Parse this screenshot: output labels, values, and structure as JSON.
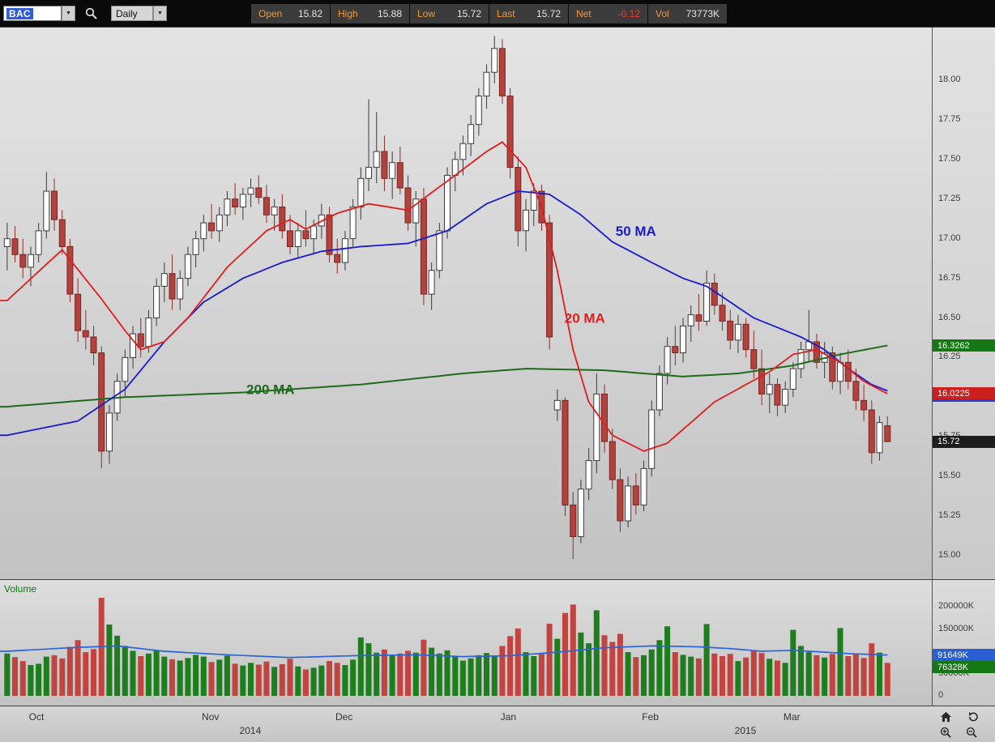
{
  "toolbar": {
    "symbol": "BAC",
    "timeframe": "Daily",
    "fields": [
      {
        "label": "Open",
        "value": "15.82"
      },
      {
        "label": "High",
        "value": "15.88"
      },
      {
        "label": "Low",
        "value": "15.72"
      },
      {
        "label": "Last",
        "value": "15.72"
      },
      {
        "label": "Net",
        "value": "-0.12",
        "negative": true
      },
      {
        "label": "Vol",
        "value": "73773K"
      }
    ]
  },
  "colors": {
    "up": "#fdfdfd",
    "up_border": "#3c3c3c",
    "down": "#b2423e",
    "down_border": "#7c2420",
    "ma20": "#e11d1d",
    "ma50": "#1a1ad0",
    "ma200": "#1e6b1e",
    "vol_up": "#1e7e1e",
    "vol_down": "#c04540",
    "vol_ma": "#2a64d9"
  },
  "chart_data": {
    "type": "candlestick+volume",
    "symbol": "BAC",
    "timeframe": "Daily",
    "ylim": [
      14.852,
      18.332
    ],
    "volume_pane_label": "Volume",
    "candles": [
      [
        16.95,
        17.1,
        16.8,
        17.0,
        95000
      ],
      [
        17.0,
        17.08,
        16.85,
        16.9,
        87000
      ],
      [
        16.9,
        17.0,
        16.75,
        16.82,
        78000
      ],
      [
        16.82,
        16.95,
        16.7,
        16.9,
        69000
      ],
      [
        16.9,
        17.1,
        16.85,
        17.05,
        72000
      ],
      [
        17.05,
        17.42,
        17.0,
        17.3,
        88000
      ],
      [
        17.3,
        17.38,
        17.05,
        17.12,
        91000
      ],
      [
        17.12,
        17.18,
        16.9,
        16.95,
        84000
      ],
      [
        16.95,
        17.0,
        16.6,
        16.65,
        110000
      ],
      [
        16.65,
        16.75,
        16.35,
        16.42,
        125000
      ],
      [
        16.42,
        16.55,
        16.3,
        16.38,
        98000
      ],
      [
        16.38,
        16.45,
        16.2,
        16.28,
        105000
      ],
      [
        16.28,
        16.32,
        15.55,
        15.66,
        220000
      ],
      [
        15.66,
        15.95,
        15.58,
        15.9,
        160000
      ],
      [
        15.9,
        16.15,
        15.85,
        16.1,
        135000
      ],
      [
        16.1,
        16.3,
        16.0,
        16.25,
        112000
      ],
      [
        16.25,
        16.45,
        16.18,
        16.4,
        101000
      ],
      [
        16.4,
        16.5,
        16.25,
        16.32,
        89000
      ],
      [
        16.32,
        16.55,
        16.28,
        16.5,
        95000
      ],
      [
        16.5,
        16.75,
        16.45,
        16.7,
        102000
      ],
      [
        16.7,
        16.85,
        16.6,
        16.78,
        88000
      ],
      [
        16.78,
        16.9,
        16.55,
        16.62,
        82000
      ],
      [
        16.62,
        16.8,
        16.55,
        16.75,
        79000
      ],
      [
        16.75,
        16.95,
        16.7,
        16.9,
        85000
      ],
      [
        16.9,
        17.05,
        16.82,
        17.0,
        92000
      ],
      [
        17.0,
        17.15,
        16.92,
        17.1,
        88000
      ],
      [
        17.1,
        17.22,
        17.0,
        17.05,
        76000
      ],
      [
        17.05,
        17.2,
        16.98,
        17.15,
        81000
      ],
      [
        17.15,
        17.3,
        17.08,
        17.25,
        90000
      ],
      [
        17.25,
        17.35,
        17.15,
        17.2,
        72000
      ],
      [
        17.2,
        17.32,
        17.12,
        17.28,
        68000
      ],
      [
        17.28,
        17.38,
        17.2,
        17.32,
        74000
      ],
      [
        17.32,
        17.4,
        17.22,
        17.26,
        70000
      ],
      [
        17.26,
        17.34,
        17.1,
        17.15,
        77000
      ],
      [
        17.15,
        17.25,
        17.05,
        17.2,
        65000
      ],
      [
        17.2,
        17.28,
        17.0,
        17.05,
        71000
      ],
      [
        17.05,
        17.15,
        16.9,
        16.95,
        83000
      ],
      [
        16.95,
        17.1,
        16.88,
        17.05,
        66000
      ],
      [
        17.05,
        17.18,
        16.95,
        17.0,
        59000
      ],
      [
        17.0,
        17.12,
        16.9,
        17.08,
        63000
      ],
      [
        17.08,
        17.22,
        17.0,
        17.15,
        68000
      ],
      [
        17.15,
        17.2,
        16.85,
        16.9,
        78000
      ],
      [
        16.9,
        17.0,
        16.78,
        16.85,
        74000
      ],
      [
        16.85,
        17.05,
        16.8,
        17.0,
        69000
      ],
      [
        17.0,
        17.25,
        16.95,
        17.2,
        81000
      ],
      [
        17.2,
        17.45,
        17.12,
        17.38,
        131000
      ],
      [
        17.38,
        17.88,
        17.3,
        17.45,
        118000
      ],
      [
        17.45,
        17.8,
        17.35,
        17.55,
        97000
      ],
      [
        17.55,
        17.65,
        17.3,
        17.38,
        104000
      ],
      [
        17.38,
        17.55,
        17.25,
        17.48,
        92000
      ],
      [
        17.48,
        17.58,
        17.28,
        17.32,
        95000
      ],
      [
        17.32,
        17.4,
        17.05,
        17.1,
        101000
      ],
      [
        17.1,
        17.3,
        16.95,
        17.25,
        97000
      ],
      [
        17.25,
        17.32,
        16.58,
        16.65,
        126000
      ],
      [
        16.65,
        16.85,
        16.55,
        16.8,
        108000
      ],
      [
        16.8,
        17.1,
        16.75,
        17.05,
        95000
      ],
      [
        17.05,
        17.45,
        17.0,
        17.4,
        102000
      ],
      [
        17.4,
        17.55,
        17.3,
        17.5,
        88000
      ],
      [
        17.5,
        17.65,
        17.4,
        17.6,
        79000
      ],
      [
        17.6,
        17.78,
        17.52,
        17.72,
        84000
      ],
      [
        17.72,
        17.95,
        17.65,
        17.9,
        91000
      ],
      [
        17.9,
        18.1,
        17.82,
        18.05,
        96000
      ],
      [
        18.05,
        18.28,
        17.98,
        18.2,
        89000
      ],
      [
        18.2,
        18.26,
        17.85,
        17.9,
        112000
      ],
      [
        17.9,
        17.95,
        17.38,
        17.45,
        134000
      ],
      [
        17.45,
        17.52,
        16.95,
        17.05,
        151000
      ],
      [
        17.05,
        17.25,
        16.92,
        17.18,
        98000
      ],
      [
        17.18,
        17.35,
        17.08,
        17.3,
        89000
      ],
      [
        17.3,
        17.34,
        17.05,
        17.1,
        94000
      ],
      [
        17.1,
        17.15,
        16.3,
        16.38,
        162000
      ],
      [
        15.92,
        16.05,
        15.85,
        15.98,
        128000
      ],
      [
        15.98,
        16.0,
        15.25,
        15.32,
        186000
      ],
      [
        15.32,
        15.4,
        14.98,
        15.12,
        205000
      ],
      [
        15.12,
        15.48,
        15.08,
        15.42,
        142000
      ],
      [
        15.42,
        15.68,
        15.35,
        15.6,
        118000
      ],
      [
        15.6,
        16.15,
        15.52,
        16.02,
        192000
      ],
      [
        16.02,
        16.08,
        15.65,
        15.72,
        136000
      ],
      [
        15.72,
        15.8,
        15.42,
        15.48,
        121000
      ],
      [
        15.48,
        15.55,
        15.15,
        15.22,
        139000
      ],
      [
        15.22,
        15.5,
        15.18,
        15.44,
        98000
      ],
      [
        15.44,
        15.52,
        15.26,
        15.32,
        87000
      ],
      [
        15.32,
        15.6,
        15.28,
        15.55,
        91000
      ],
      [
        15.55,
        15.98,
        15.5,
        15.92,
        104000
      ],
      [
        15.92,
        16.2,
        15.88,
        16.15,
        125000
      ],
      [
        16.15,
        16.38,
        16.08,
        16.32,
        156000
      ],
      [
        16.32,
        16.45,
        16.2,
        16.28,
        98000
      ],
      [
        16.28,
        16.5,
        16.22,
        16.45,
        92000
      ],
      [
        16.45,
        16.58,
        16.35,
        16.52,
        88000
      ],
      [
        16.52,
        16.65,
        16.42,
        16.48,
        84000
      ],
      [
        16.48,
        16.8,
        16.45,
        16.72,
        161000
      ],
      [
        16.72,
        16.78,
        16.52,
        16.58,
        95000
      ],
      [
        16.58,
        16.66,
        16.42,
        16.48,
        89000
      ],
      [
        16.48,
        16.55,
        16.3,
        16.36,
        94000
      ],
      [
        16.36,
        16.52,
        16.28,
        16.46,
        78000
      ],
      [
        16.46,
        16.5,
        16.25,
        16.3,
        86000
      ],
      [
        16.3,
        16.42,
        16.12,
        16.18,
        102000
      ],
      [
        16.18,
        16.3,
        15.95,
        16.02,
        96000
      ],
      [
        16.02,
        16.15,
        15.9,
        16.08,
        83000
      ],
      [
        16.08,
        16.12,
        15.88,
        15.95,
        79000
      ],
      [
        15.95,
        16.1,
        15.9,
        16.05,
        74000
      ],
      [
        16.05,
        16.22,
        16.0,
        16.18,
        148000
      ],
      [
        16.18,
        16.35,
        16.12,
        16.3,
        112000
      ],
      [
        16.3,
        16.55,
        16.22,
        16.35,
        98000
      ],
      [
        16.35,
        16.4,
        16.18,
        16.22,
        91000
      ],
      [
        16.22,
        16.35,
        16.12,
        16.28,
        86000
      ],
      [
        16.28,
        16.32,
        16.05,
        16.1,
        94000
      ],
      [
        16.1,
        16.28,
        16.02,
        16.22,
        152000
      ],
      [
        16.22,
        16.3,
        16.05,
        16.1,
        89000
      ],
      [
        16.1,
        16.18,
        15.92,
        15.98,
        93000
      ],
      [
        15.98,
        16.08,
        15.85,
        15.92,
        85000
      ],
      [
        15.92,
        15.98,
        15.58,
        15.65,
        118000
      ],
      [
        15.65,
        15.88,
        15.6,
        15.84,
        97000
      ],
      [
        15.82,
        15.88,
        15.72,
        15.72,
        73773
      ]
    ],
    "ma20_points": [
      [
        0,
        16.61
      ],
      [
        7,
        16.93
      ],
      [
        12,
        16.62
      ],
      [
        15,
        16.42
      ],
      [
        17,
        16.3
      ],
      [
        20,
        16.35
      ],
      [
        23,
        16.5
      ],
      [
        28,
        16.82
      ],
      [
        33,
        17.05
      ],
      [
        36,
        17.12
      ],
      [
        38,
        17.06
      ],
      [
        42,
        17.16
      ],
      [
        46,
        17.22
      ],
      [
        51,
        17.18
      ],
      [
        57,
        17.4
      ],
      [
        61,
        17.55
      ],
      [
        63,
        17.61
      ],
      [
        66,
        17.45
      ],
      [
        68,
        17.2
      ],
      [
        70,
        16.8
      ],
      [
        72,
        16.3
      ],
      [
        74,
        15.97
      ],
      [
        77,
        15.76
      ],
      [
        81,
        15.66
      ],
      [
        84,
        15.71
      ],
      [
        87,
        15.84
      ],
      [
        90,
        15.97
      ],
      [
        94,
        16.08
      ],
      [
        97,
        16.16
      ],
      [
        100,
        16.27
      ],
      [
        103,
        16.3
      ],
      [
        106,
        16.22
      ],
      [
        109,
        16.1
      ],
      [
        112,
        16.0225
      ]
    ],
    "ma50_points": [
      [
        0,
        15.76
      ],
      [
        9,
        15.85
      ],
      [
        15,
        16.05
      ],
      [
        20,
        16.35
      ],
      [
        25,
        16.6
      ],
      [
        30,
        16.75
      ],
      [
        35,
        16.85
      ],
      [
        40,
        16.92
      ],
      [
        45,
        16.95
      ],
      [
        51,
        16.97
      ],
      [
        56,
        17.05
      ],
      [
        61,
        17.22
      ],
      [
        65,
        17.3
      ],
      [
        69,
        17.28
      ],
      [
        73,
        17.15
      ],
      [
        77,
        16.98
      ],
      [
        82,
        16.85
      ],
      [
        86,
        16.75
      ],
      [
        89,
        16.7
      ],
      [
        92,
        16.6
      ],
      [
        95,
        16.5
      ],
      [
        98,
        16.44
      ],
      [
        101,
        16.38
      ],
      [
        104,
        16.3
      ],
      [
        107,
        16.18
      ],
      [
        110,
        16.08
      ],
      [
        112,
        16.04
      ]
    ],
    "ma200_points": [
      [
        0,
        15.94
      ],
      [
        15,
        16.0
      ],
      [
        30,
        16.03
      ],
      [
        45,
        16.08
      ],
      [
        58,
        16.15
      ],
      [
        66,
        16.18
      ],
      [
        76,
        16.17
      ],
      [
        86,
        16.13
      ],
      [
        93,
        16.15
      ],
      [
        100,
        16.2
      ],
      [
        106,
        16.27
      ],
      [
        112,
        16.3262
      ]
    ],
    "vol_ma_points": [
      [
        0,
        100000
      ],
      [
        8,
        108000
      ],
      [
        14,
        112000
      ],
      [
        20,
        100000
      ],
      [
        28,
        92000
      ],
      [
        36,
        86000
      ],
      [
        44,
        90000
      ],
      [
        52,
        92000
      ],
      [
        58,
        88000
      ],
      [
        64,
        90000
      ],
      [
        70,
        98000
      ],
      [
        76,
        108000
      ],
      [
        82,
        112000
      ],
      [
        88,
        110000
      ],
      [
        92,
        106000
      ],
      [
        96,
        100000
      ],
      [
        100,
        102000
      ],
      [
        104,
        98000
      ],
      [
        108,
        94000
      ],
      [
        112,
        91649
      ]
    ],
    "annotations": [
      {
        "text": "50 MA",
        "i": 80,
        "price": 17.05,
        "color": "#1a1ad0"
      },
      {
        "text": "20 MA",
        "i": 73.5,
        "price": 16.5,
        "color": "#e11d1d"
      },
      {
        "text": "200 MA",
        "i": 33.5,
        "price": 16.05,
        "color": "#1e6b1e"
      }
    ],
    "price_ticks": [
      {
        "value": 18.0,
        "label": "18.00"
      },
      {
        "value": 17.75,
        "label": "17.75"
      },
      {
        "value": 17.5,
        "label": "17.50"
      },
      {
        "value": 17.25,
        "label": "17.25"
      },
      {
        "value": 17.0,
        "label": "17.00"
      },
      {
        "value": 16.75,
        "label": "16.75"
      },
      {
        "value": 16.5,
        "label": "16.50"
      },
      {
        "value": 16.25,
        "label": "16.25"
      },
      {
        "value": 15.75,
        "label": "15.75"
      },
      {
        "value": 15.5,
        "label": "15.50"
      },
      {
        "value": 15.25,
        "label": "15.25"
      },
      {
        "value": 15.0,
        "label": "15.00"
      }
    ],
    "price_badges": [
      {
        "label": "16.3262",
        "value": 16.3262,
        "bg": "#157815"
      },
      {
        "label": "16.0225",
        "value": 16.0225,
        "bg": "#cc1f1f",
        "underline": "#2640d8"
      },
      {
        "label": "15.72",
        "value": 15.72,
        "bg": "#1d1d1d"
      }
    ],
    "volume_ticks": [
      {
        "value": 200000,
        "label": "200000K"
      },
      {
        "value": 150000,
        "label": "150000K"
      },
      {
        "value": 50000,
        "label": "50000K"
      },
      {
        "value": 0,
        "label": "0"
      }
    ],
    "volume_badges": [
      {
        "label": "91649K",
        "value": 91649,
        "bg": "#2a5fd4"
      },
      {
        "label": "76328K",
        "value": 76328,
        "bg": "#157815"
      }
    ],
    "months": [
      {
        "label": "Oct",
        "i": 4
      },
      {
        "label": "Nov",
        "i": 26
      },
      {
        "label": "Dec",
        "i": 43
      },
      {
        "label": "Jan",
        "i": 64
      },
      {
        "label": "Feb",
        "i": 82
      },
      {
        "label": "Mar",
        "i": 100
      }
    ],
    "years": [
      {
        "label": "2014",
        "i": 31
      },
      {
        "label": "2015",
        "i": 94
      }
    ]
  }
}
